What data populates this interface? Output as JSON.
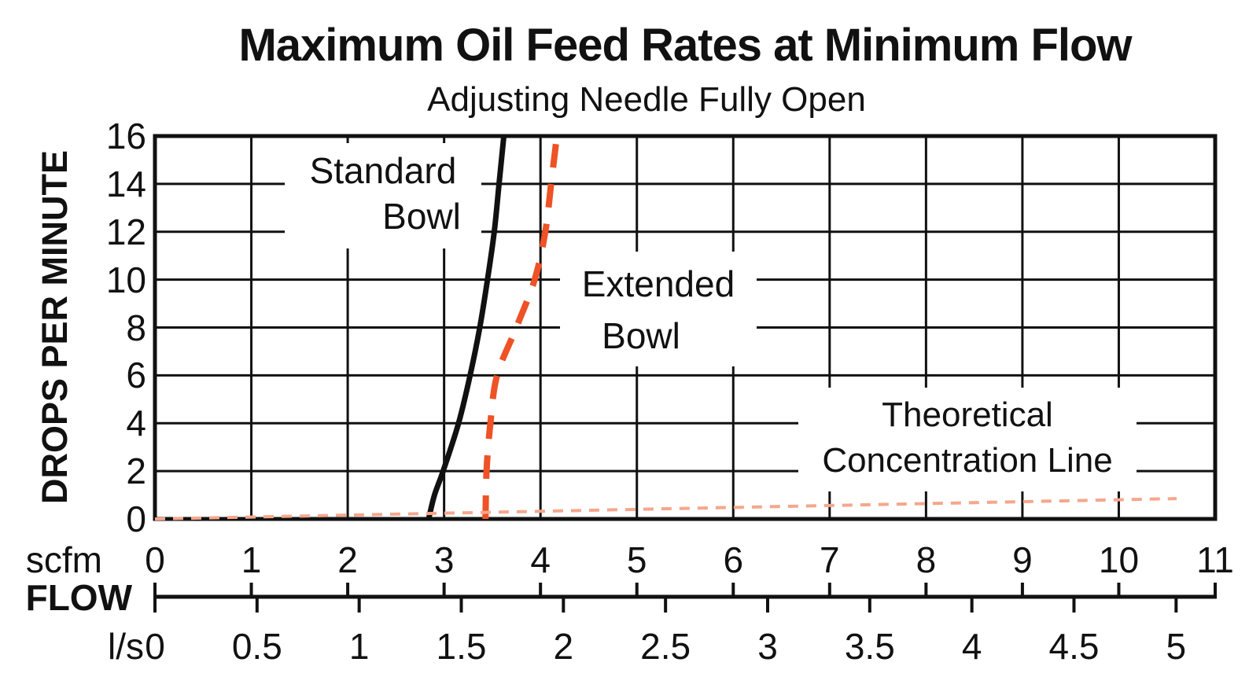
{
  "chart_data": {
    "type": "line",
    "title": "Maximum Oil Feed Rates at Minimum Flow",
    "subtitle": "Adjusting Needle Fully Open",
    "ylabel": "DROPS PER MINUTE",
    "ylim": [
      0,
      16
    ],
    "yticks": [
      0,
      2,
      4,
      6,
      8,
      10,
      12,
      14,
      16
    ],
    "grid": true,
    "legend_position": "inline-annotations",
    "x_axis": {
      "label": "FLOW",
      "primary": {
        "unit": "scfm",
        "min": 0,
        "max": 11,
        "ticks": [
          0,
          1,
          2,
          3,
          4,
          5,
          6,
          7,
          8,
          9,
          10,
          11
        ]
      },
      "secondary": {
        "unit": "l/s",
        "ticks": [
          0,
          0.5,
          1,
          1.5,
          2,
          2.5,
          3,
          3.5,
          4,
          4.5,
          5
        ],
        "scfm_per_unit": 2.1189
      }
    },
    "series": [
      {
        "name": "Standard Bowl",
        "label_lines": [
          "Standard",
          "Bowl"
        ],
        "line_style": "solid",
        "color": "#111111",
        "x_unit": "scfm",
        "points": [
          [
            2.84,
            0
          ],
          [
            2.9,
            1
          ],
          [
            2.99,
            2
          ],
          [
            3.15,
            4
          ],
          [
            3.27,
            6
          ],
          [
            3.37,
            8
          ],
          [
            3.45,
            10
          ],
          [
            3.52,
            12
          ],
          [
            3.57,
            14
          ],
          [
            3.62,
            16
          ]
        ]
      },
      {
        "name": "Extended Bowl",
        "label_lines": [
          "Extended",
          "Bowl"
        ],
        "line_style": "dashed",
        "color": "#EE5226",
        "x_unit": "scfm",
        "points": [
          [
            3.43,
            0
          ],
          [
            3.44,
            2
          ],
          [
            3.48,
            4
          ],
          [
            3.55,
            6
          ],
          [
            3.75,
            8
          ],
          [
            3.94,
            10
          ],
          [
            4.05,
            12
          ],
          [
            4.11,
            14
          ],
          [
            4.17,
            16
          ]
        ]
      },
      {
        "name": "Theoretical Concentration Line",
        "label_lines": [
          "Theoretical",
          "Concentration Line"
        ],
        "line_style": "fine-dashed",
        "color": "#F5A78C",
        "x_unit": "scfm",
        "points": [
          [
            0,
            0
          ],
          [
            10.6,
            0.85
          ]
        ]
      }
    ]
  }
}
